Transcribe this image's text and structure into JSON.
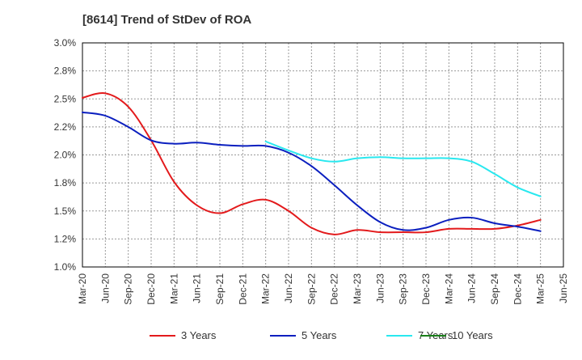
{
  "title": "[8614]  Trend of StDev of ROA",
  "colors": {
    "axis": "#000000",
    "grid": "#999999",
    "text": "#333333"
  },
  "chart_data": {
    "type": "line",
    "title": "[8614]  Trend of StDev of ROA",
    "xlabel": "",
    "ylabel": "",
    "x": [
      "Mar-20",
      "Jun-20",
      "Sep-20",
      "Dec-20",
      "Mar-21",
      "Jun-21",
      "Sep-21",
      "Dec-21",
      "Mar-22",
      "Jun-22",
      "Sep-22",
      "Dec-22",
      "Mar-23",
      "Jun-23",
      "Sep-23",
      "Dec-23",
      "Mar-24",
      "Jun-24",
      "Sep-24",
      "Dec-24",
      "Mar-25",
      "Jun-25"
    ],
    "ylim": [
      1.0,
      3.0
    ],
    "yticks": [
      1.0,
      1.25,
      1.5,
      1.75,
      2.0,
      2.25,
      2.5,
      2.75,
      3.0
    ],
    "ytick_labels": [
      "1.0%",
      "1.2%",
      "1.5%",
      "1.8%",
      "2.0%",
      "2.2%",
      "2.5%",
      "2.8%",
      "3.0%"
    ],
    "grid": true,
    "legend_position": "bottom",
    "series": [
      {
        "name": "3 Years",
        "color": "#e31a1c",
        "values": [
          2.51,
          2.55,
          2.43,
          2.13,
          1.76,
          1.55,
          1.48,
          1.56,
          1.6,
          1.5,
          1.35,
          1.29,
          1.33,
          1.31,
          1.31,
          1.31,
          1.34,
          1.34,
          1.34,
          1.37,
          1.42,
          null
        ]
      },
      {
        "name": "5 Years",
        "color": "#0b1fbf",
        "values": [
          2.38,
          2.35,
          2.25,
          2.13,
          2.1,
          2.11,
          2.09,
          2.08,
          2.08,
          2.02,
          1.9,
          1.73,
          1.55,
          1.4,
          1.33,
          1.35,
          1.42,
          1.44,
          1.39,
          1.36,
          1.32,
          null
        ]
      },
      {
        "name": "7 Years",
        "color": "#29e8ef",
        "values": [
          null,
          null,
          null,
          null,
          null,
          null,
          null,
          null,
          2.12,
          2.04,
          1.97,
          1.94,
          1.97,
          1.98,
          1.97,
          1.97,
          1.97,
          1.94,
          1.83,
          1.71,
          1.63,
          null
        ]
      },
      {
        "name": "10 Years",
        "color": "#1a7f1a",
        "values": [
          null,
          null,
          null,
          null,
          null,
          null,
          null,
          null,
          null,
          null,
          null,
          null,
          null,
          null,
          null,
          null,
          null,
          null,
          null,
          null,
          null,
          null
        ]
      }
    ]
  }
}
